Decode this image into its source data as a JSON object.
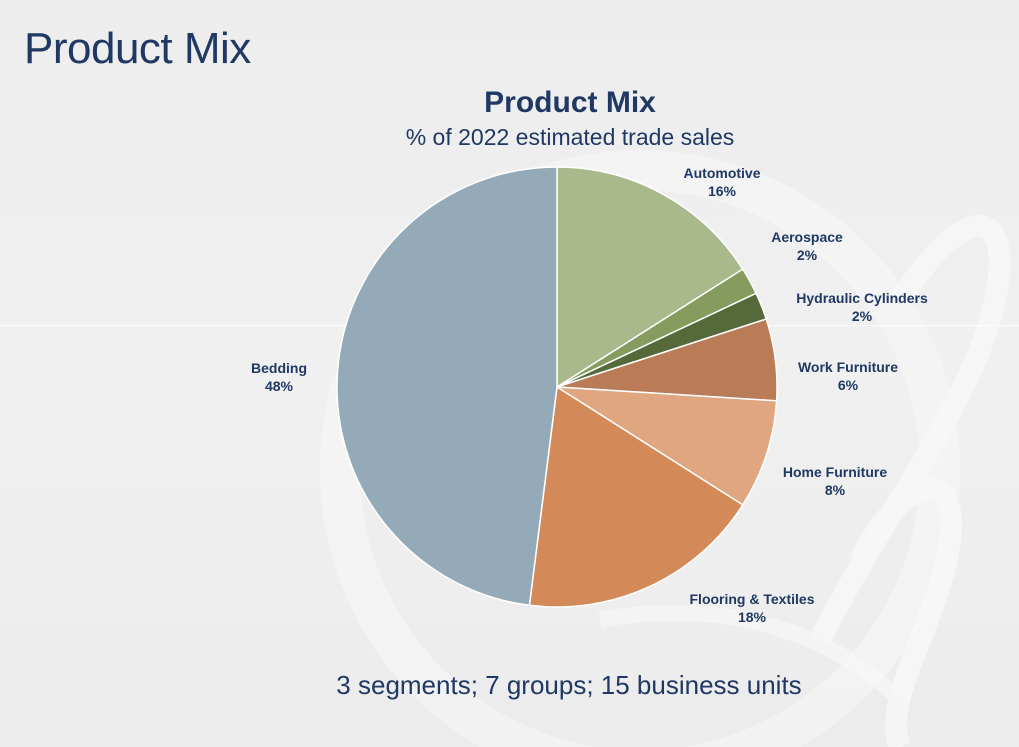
{
  "slide": {
    "title": "Product Mix",
    "footer": "3 segments; 7 groups; 15 business units"
  },
  "chart_data": {
    "type": "pie",
    "title": "Product Mix",
    "subtitle": "% of 2022 estimated trade sales",
    "unit": "%",
    "slices": [
      {
        "name": "Automotive",
        "value": 16,
        "label": "16%",
        "color": "#a9b98b"
      },
      {
        "name": "Aerospace",
        "value": 2,
        "label": "2%",
        "color": "#869b5e"
      },
      {
        "name": "Hydraulic Cylinders",
        "value": 2,
        "label": "2%",
        "color": "#56693b"
      },
      {
        "name": "Work Furniture",
        "value": 6,
        "label": "6%",
        "color": "#b97c57"
      },
      {
        "name": "Home Furniture",
        "value": 8,
        "label": "8%",
        "color": "#dfa67f"
      },
      {
        "name": "Flooring & Textiles",
        "value": 18,
        "label": "18%",
        "color": "#d48a58"
      },
      {
        "name": "Bedding",
        "value": 48,
        "label": "48%",
        "color": "#94aab8"
      }
    ]
  }
}
